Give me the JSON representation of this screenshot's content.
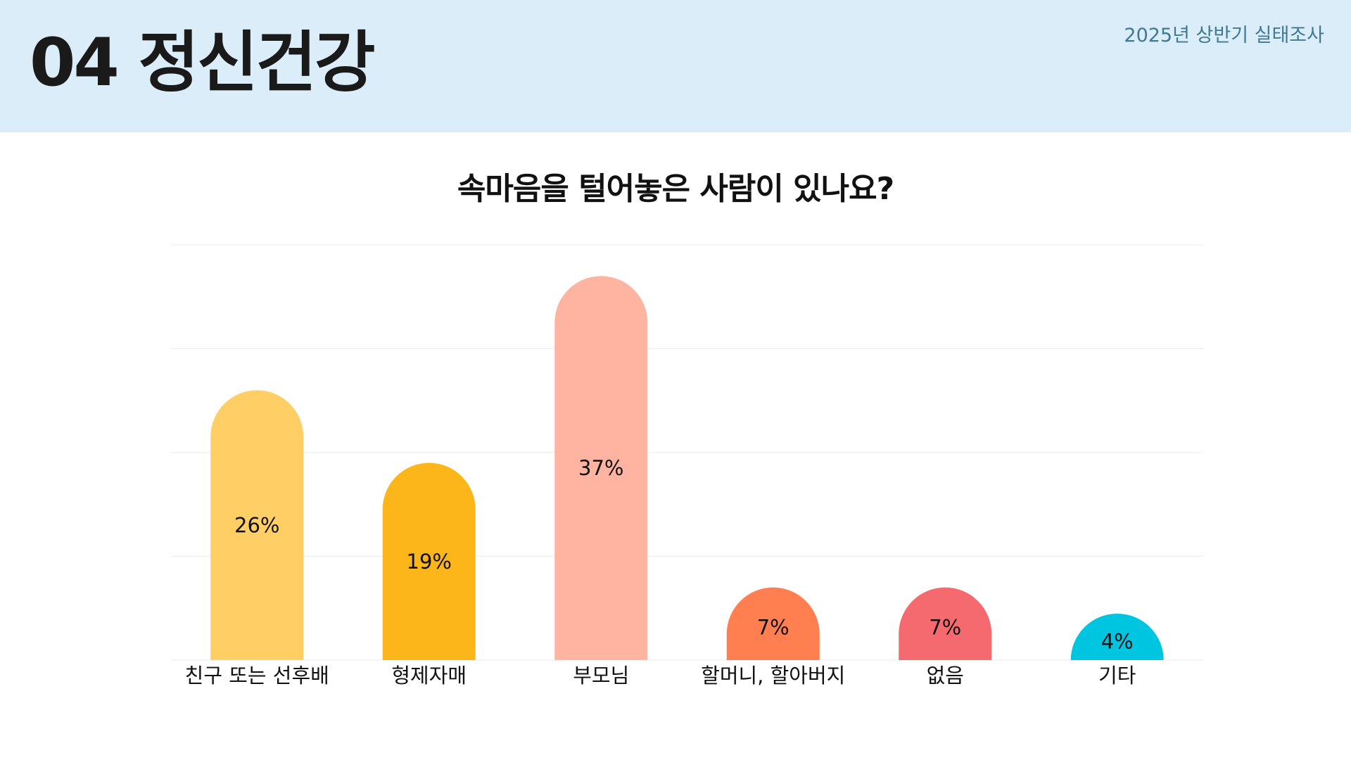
{
  "header": {
    "title": "04 정신건강",
    "survey_tag": "2025년 상반기 실태조사",
    "background": "#dbedf8"
  },
  "chart_data": {
    "type": "bar",
    "title": "속마음을 털어놓은 사람이 있나요?",
    "categories": [
      "친구 또는 선후배",
      "형제자매",
      "부모님",
      "할머니, 할아버지",
      "없음",
      "기타"
    ],
    "values": [
      26,
      19,
      37,
      7,
      7,
      4
    ],
    "value_labels": [
      "26%",
      "19%",
      "37%",
      "7%",
      "7%",
      "4%"
    ],
    "colors": [
      "#ffcf66",
      "#fcb61a",
      "#ffb4a2",
      "#ff7f50",
      "#f46a6e",
      "#00c5e0"
    ],
    "ylim": [
      0,
      40
    ],
    "grid": true,
    "legend": "none",
    "xlabel": "",
    "ylabel": ""
  }
}
